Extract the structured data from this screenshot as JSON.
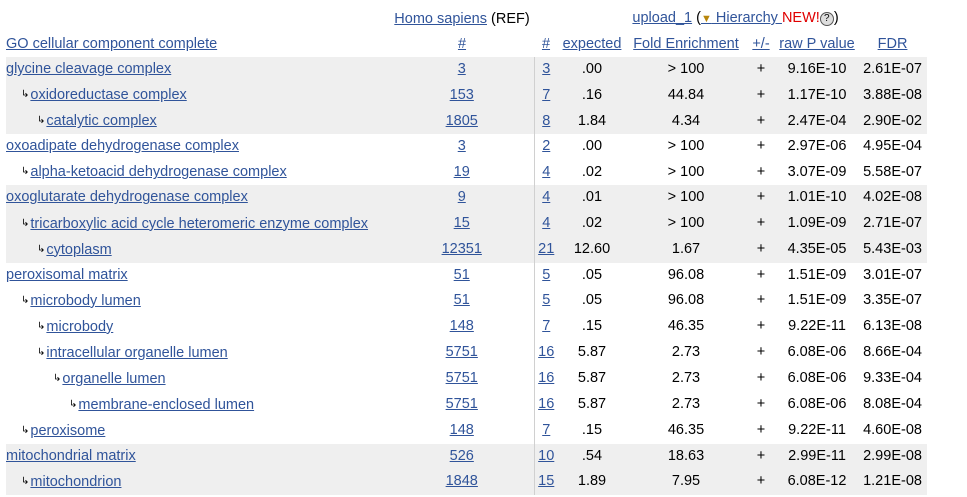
{
  "header": {
    "ref_species": "Homo sapiens",
    "ref_suffix": "(REF)",
    "upload_label": "upload_1",
    "paren_open": "(",
    "hierarchy_arrow": "▼",
    "hierarchy_label": " Hierarchy ",
    "new_label": "NEW!",
    "help_glyph": "?",
    "paren_close": ")",
    "col_term": "GO cellular component complete",
    "col_ref_count": "#",
    "col_count": "#",
    "col_expected": "expected",
    "col_fold": "Fold Enrichment",
    "col_direction": "+/-",
    "col_pvalue": "raw P value",
    "col_fdr": "FDR"
  },
  "rows": [
    {
      "indent": 0,
      "term": "glycine cleavage complex",
      "ref": "3",
      "count": "3",
      "expected": ".00",
      "fold": "> 100",
      "dir": "+",
      "p": "9.16E-10",
      "fdr": "2.61E-07",
      "shade": true
    },
    {
      "indent": 1,
      "term": "oxidoreductase complex",
      "ref": "153",
      "count": "7",
      "expected": ".16",
      "fold": "44.84",
      "dir": "+",
      "p": "1.17E-10",
      "fdr": "3.88E-08",
      "shade": true
    },
    {
      "indent": 2,
      "term": "catalytic complex",
      "ref": "1805",
      "count": "8",
      "expected": "1.84",
      "fold": "4.34",
      "dir": "+",
      "p": "2.47E-04",
      "fdr": "2.90E-02",
      "shade": true
    },
    {
      "indent": 0,
      "term": "oxoadipate dehydrogenase complex",
      "ref": "3",
      "count": "2",
      "expected": ".00",
      "fold": "> 100",
      "dir": "+",
      "p": "2.97E-06",
      "fdr": "4.95E-04",
      "shade": false
    },
    {
      "indent": 1,
      "term": "alpha-ketoacid dehydrogenase complex",
      "ref": "19",
      "count": "4",
      "expected": ".02",
      "fold": "> 100",
      "dir": "+",
      "p": "3.07E-09",
      "fdr": "5.58E-07",
      "shade": false
    },
    {
      "indent": 0,
      "term": "oxoglutarate dehydrogenase complex",
      "ref": "9",
      "count": "4",
      "expected": ".01",
      "fold": "> 100",
      "dir": "+",
      "p": "1.01E-10",
      "fdr": "4.02E-08",
      "shade": true
    },
    {
      "indent": 1,
      "term": "tricarboxylic acid cycle heteromeric enzyme complex",
      "ref": "15",
      "count": "4",
      "expected": ".02",
      "fold": "> 100",
      "dir": "+",
      "p": "1.09E-09",
      "fdr": "2.71E-07",
      "shade": true
    },
    {
      "indent": 2,
      "term": "cytoplasm",
      "ref": "12351",
      "count": "21",
      "expected": "12.60",
      "fold": "1.67",
      "dir": "+",
      "p": "4.35E-05",
      "fdr": "5.43E-03",
      "shade": true
    },
    {
      "indent": 0,
      "term": "peroxisomal matrix",
      "ref": "51",
      "count": "5",
      "expected": ".05",
      "fold": "96.08",
      "dir": "+",
      "p": "1.51E-09",
      "fdr": "3.01E-07",
      "shade": false
    },
    {
      "indent": 1,
      "term": "microbody lumen",
      "ref": "51",
      "count": "5",
      "expected": ".05",
      "fold": "96.08",
      "dir": "+",
      "p": "1.51E-09",
      "fdr": "3.35E-07",
      "shade": false
    },
    {
      "indent": 2,
      "term": "microbody",
      "ref": "148",
      "count": "7",
      "expected": ".15",
      "fold": "46.35",
      "dir": "+",
      "p": "9.22E-11",
      "fdr": "6.13E-08",
      "shade": false
    },
    {
      "indent": 2,
      "term": "intracellular organelle lumen",
      "ref": "5751",
      "count": "16",
      "expected": "5.87",
      "fold": "2.73",
      "dir": "+",
      "p": "6.08E-06",
      "fdr": "8.66E-04",
      "shade": false
    },
    {
      "indent": 3,
      "term": "organelle lumen",
      "ref": "5751",
      "count": "16",
      "expected": "5.87",
      "fold": "2.73",
      "dir": "+",
      "p": "6.08E-06",
      "fdr": "9.33E-04",
      "shade": false
    },
    {
      "indent": 4,
      "term": "membrane-enclosed lumen",
      "ref": "5751",
      "count": "16",
      "expected": "5.87",
      "fold": "2.73",
      "dir": "+",
      "p": "6.08E-06",
      "fdr": "8.08E-04",
      "shade": false
    },
    {
      "indent": 1,
      "term": "peroxisome",
      "ref": "148",
      "count": "7",
      "expected": ".15",
      "fold": "46.35",
      "dir": "+",
      "p": "9.22E-11",
      "fdr": "4.60E-08",
      "shade": false
    },
    {
      "indent": 0,
      "term": "mitochondrial matrix",
      "ref": "526",
      "count": "10",
      "expected": ".54",
      "fold": "18.63",
      "dir": "+",
      "p": "2.99E-11",
      "fdr": "2.99E-08",
      "shade": true
    },
    {
      "indent": 1,
      "term": "mitochondrion",
      "ref": "1848",
      "count": "15",
      "expected": "1.89",
      "fold": "7.95",
      "dir": "+",
      "p": "6.08E-12",
      "fdr": "1.21E-08",
      "shade": true
    }
  ]
}
